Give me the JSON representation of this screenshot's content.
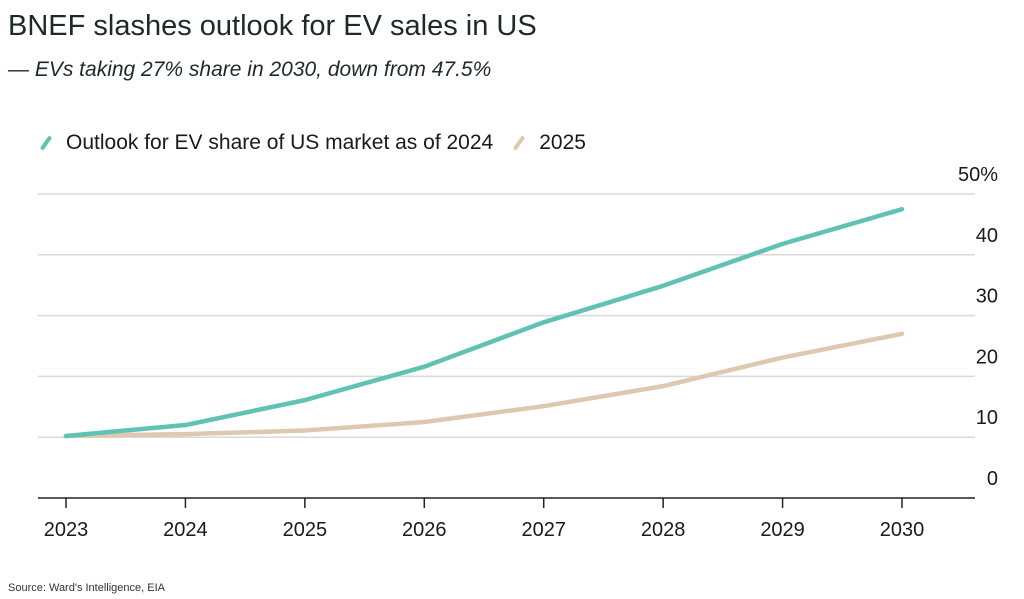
{
  "title": "BNEF slashes outlook for EV sales in US",
  "subtitle": "— EVs taking 27% share in 2030, down from 47.5%",
  "source": "Source: Ward's Intelligence, EIA",
  "chart_data": {
    "type": "line",
    "x": [
      "2023",
      "2024",
      "2025",
      "2026",
      "2027",
      "2028",
      "2029",
      "2030"
    ],
    "ylim": [
      0,
      50
    ],
    "yticks": [
      0,
      10,
      20,
      30,
      40,
      50
    ],
    "ytick_labels": [
      "0",
      "10",
      "20",
      "30",
      "40",
      "50%"
    ],
    "y_axis_side": "right",
    "grid": true,
    "legend_position": "top-left",
    "series": [
      {
        "name": "Outlook for EV share of US market as of 2024",
        "color": "#5fc2b4",
        "values": [
          10.2,
          12.0,
          16.1,
          21.6,
          28.9,
          34.9,
          41.8,
          47.5
        ]
      },
      {
        "name": "2025",
        "color": "#dcc9b0",
        "values": [
          10.2,
          10.5,
          11.1,
          12.5,
          15.1,
          18.4,
          23.1,
          27.0
        ]
      }
    ]
  }
}
